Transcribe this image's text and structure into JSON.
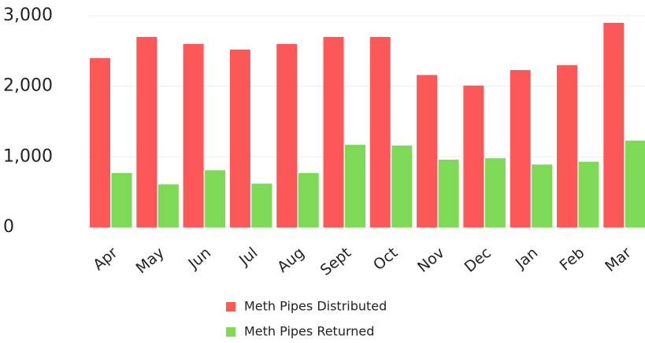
{
  "chart_data": {
    "type": "bar",
    "categories": [
      "Apr",
      "May",
      "Jun",
      "Jul",
      "Aug",
      "Sept",
      "Oct",
      "Nov",
      "Dec",
      "Jan",
      "Feb",
      "Mar"
    ],
    "series": [
      {
        "name": "Meth Pipes Distributed",
        "color": "#fc5858",
        "values": [
          2400,
          2700,
          2600,
          2520,
          2600,
          2700,
          2700,
          2160,
          2010,
          2230,
          2300,
          2900
        ]
      },
      {
        "name": "Meth Pipes Returned",
        "color": "#7ed957",
        "values": [
          770,
          610,
          810,
          620,
          770,
          1170,
          1160,
          960,
          980,
          890,
          930,
          1230
        ]
      }
    ],
    "ylim": [
      0,
      3000
    ],
    "yticks": [
      0,
      {
        "value": 1000,
        "label": "1,000"
      },
      {
        "value": 2000,
        "label": "2,000"
      },
      {
        "value": 3000,
        "label": "3,000"
      }
    ],
    "grid": true
  }
}
